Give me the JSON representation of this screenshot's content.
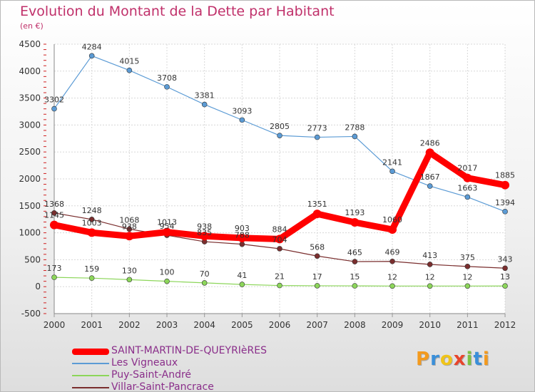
{
  "chart_data": {
    "type": "line",
    "title": "Evolution du Montant de la Dette par Habitant",
    "subtitle": "(en €)",
    "x": [
      "2000",
      "2001",
      "2002",
      "2003",
      "2004",
      "2005",
      "2006",
      "2007",
      "2008",
      "2009",
      "2010",
      "2011",
      "2012"
    ],
    "ylim": [
      -500,
      4500
    ],
    "yticks": [
      "-500",
      "0",
      "500",
      "1000",
      "1500",
      "2000",
      "2500",
      "3000",
      "3500",
      "4000",
      "4500"
    ],
    "grid": true,
    "legend_position": "bottom-left",
    "series": [
      {
        "name": "SAINT-MARTIN-DE-QUEYRIèRES",
        "color": "#ff0000",
        "values": [
          1145,
          1003,
          938,
          1013,
          938,
          903,
          884,
          1351,
          1193,
          1060,
          2486,
          2017,
          1885
        ],
        "labels": [
          "1145",
          "1003",
          "938",
          "1013",
          "938",
          "903",
          "884",
          "1351",
          "1193",
          "1060",
          "2486",
          "2017",
          "1885"
        ]
      },
      {
        "name": "Les Vigneaux",
        "color": "#5b9bd5",
        "values": [
          3302,
          4284,
          4015,
          3708,
          3381,
          3093,
          2805,
          2773,
          2788,
          2141,
          1867,
          1663,
          1394
        ],
        "labels": [
          "3302",
          "4284",
          "4015",
          "3708",
          "3381",
          "3093",
          "2805",
          "2773",
          "2788",
          "2141",
          "1867",
          "1663",
          "1394"
        ]
      },
      {
        "name": "Puy-Saint-André",
        "color": "#8cd65a",
        "values": [
          173,
          159,
          130,
          100,
          70,
          41,
          21,
          17,
          15,
          12,
          12,
          12,
          13
        ],
        "labels": [
          "173",
          "159",
          "130",
          "100",
          "70",
          "41",
          "21",
          "17",
          "15",
          "12",
          "12",
          "12",
          "13"
        ]
      },
      {
        "name": "Villar-Saint-Pancrace",
        "color": "#7a2e2e",
        "values": [
          1368,
          1248,
          1068,
          954,
          835,
          788,
          704,
          568,
          465,
          469,
          413,
          375,
          343
        ],
        "labels": [
          "1368",
          "1248",
          "1068",
          "954",
          "835",
          "788",
          "704",
          "568",
          "465",
          "469",
          "413",
          "375",
          "343"
        ]
      }
    ]
  },
  "brand": {
    "letters": [
      {
        "ch": "P",
        "color": "#f39a1e"
      },
      {
        "ch": "r",
        "color": "#3a8fd9"
      },
      {
        "ch": "o",
        "color": "#f0c419"
      },
      {
        "ch": "x",
        "color": "#e8452c"
      },
      {
        "ch": "i",
        "color": "#7cc242"
      },
      {
        "ch": "t",
        "color": "#3a8fd9"
      },
      {
        "ch": "i",
        "color": "#f39a1e"
      }
    ]
  }
}
